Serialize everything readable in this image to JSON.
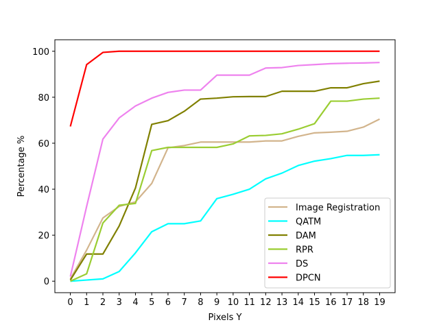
{
  "chart_data": {
    "type": "line",
    "title": "",
    "xlabel": "Pixels Y",
    "ylabel": "Percentage %",
    "xlim": [
      -0.95,
      19.95
    ],
    "ylim": [
      -5,
      105
    ],
    "x": [
      0,
      1,
      2,
      3,
      4,
      5,
      6,
      7,
      8,
      9,
      10,
      11,
      12,
      13,
      14,
      15,
      16,
      17,
      18,
      19
    ],
    "x_ticks": [
      "0",
      "1",
      "2",
      "3",
      "4",
      "5",
      "6",
      "7",
      "8",
      "9",
      "10",
      "11",
      "12",
      "13",
      "14",
      "15",
      "16",
      "17",
      "18",
      "19"
    ],
    "y_ticks": [
      0,
      20,
      40,
      60,
      80,
      100
    ],
    "grid": false,
    "legend_position": "lower-right",
    "series": [
      {
        "name": "Image Registration",
        "color": "#d2b48c",
        "values": [
          1,
          13.5,
          27.5,
          32.5,
          34.5,
          42.5,
          58,
          59,
          60.5,
          60.5,
          60.5,
          60.5,
          61,
          61,
          63,
          64.5,
          64.8,
          65.2,
          67,
          70.5
        ]
      },
      {
        "name": "QATM",
        "color": "#00ffff",
        "values": [
          0,
          0.5,
          1,
          4.2,
          12.3,
          21.5,
          25,
          25,
          26.2,
          35.9,
          37.8,
          40,
          44.5,
          47,
          50.3,
          52.2,
          53.3,
          54.7,
          54.7,
          55
        ]
      },
      {
        "name": "DAM",
        "color": "#808000",
        "values": [
          0.5,
          11.8,
          11.8,
          24,
          40.5,
          68.2,
          69.8,
          73.9,
          79.2,
          79.6,
          80.2,
          80.3,
          80.3,
          82.6,
          82.6,
          82.6,
          84.1,
          84.1,
          85.9,
          87
        ]
      },
      {
        "name": "RPR",
        "color": "#9acd32",
        "values": [
          0,
          3.2,
          25.3,
          33,
          33.8,
          56.8,
          58.2,
          58.2,
          58.2,
          58.2,
          59.7,
          63.2,
          63.4,
          64.1,
          66.1,
          68.5,
          78.3,
          78.3,
          79.2,
          79.6
        ]
      },
      {
        "name": "DS",
        "color": "#ee82ee",
        "values": [
          2,
          32.5,
          61.8,
          71,
          76.2,
          79.6,
          82.1,
          83.1,
          83.1,
          89.6,
          89.6,
          89.6,
          92.7,
          92.9,
          93.8,
          94.2,
          94.6,
          94.8,
          94.9,
          95.1
        ]
      },
      {
        "name": "DPCN",
        "color": "#ff0000",
        "values": [
          67.3,
          94.2,
          99.5,
          100,
          100,
          100,
          100,
          100,
          100,
          100,
          100,
          100,
          100,
          100,
          100,
          100,
          100,
          100,
          100,
          100
        ]
      }
    ]
  }
}
